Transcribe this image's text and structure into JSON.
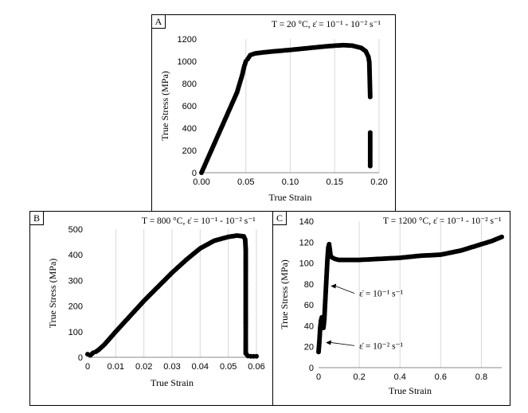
{
  "chart_data": [
    {
      "id": "A",
      "type": "scatter",
      "panel_label": "A",
      "title": "T = 20 °C, ε̇ = 10⁻¹ - 10⁻² s⁻¹",
      "xlabel": "True Strain",
      "ylabel": "True Stress (MPa)",
      "xlim": [
        0,
        0.2
      ],
      "ylim": [
        0,
        1200
      ],
      "xticks": [
        0,
        0.05,
        0.1,
        0.15,
        0.2
      ],
      "xtick_labels": [
        "0.00",
        "0.05",
        "0.10",
        "0.15",
        "0.20"
      ],
      "yticks": [
        0,
        200,
        400,
        600,
        800,
        1000,
        1200
      ],
      "ytick_labels": [
        "0",
        "200",
        "400",
        "600",
        "800",
        "1000",
        "1200"
      ],
      "grid": "vertical",
      "series": [
        {
          "points": [
            [
              0,
              0
            ],
            [
              0.005,
              90
            ],
            [
              0.01,
              180
            ],
            [
              0.015,
              270
            ],
            [
              0.02,
              360
            ],
            [
              0.025,
              450
            ],
            [
              0.03,
              540
            ],
            [
              0.035,
              630
            ],
            [
              0.04,
              720
            ],
            [
              0.043,
              800
            ],
            [
              0.046,
              880
            ],
            [
              0.048,
              950
            ],
            [
              0.05,
              1000
            ],
            [
              0.052,
              1020
            ],
            [
              0.055,
              1055
            ],
            [
              0.06,
              1070
            ],
            [
              0.07,
              1080
            ],
            [
              0.08,
              1088
            ],
            [
              0.09,
              1095
            ],
            [
              0.1,
              1102
            ],
            [
              0.11,
              1110
            ],
            [
              0.12,
              1118
            ],
            [
              0.13,
              1126
            ],
            [
              0.14,
              1134
            ],
            [
              0.15,
              1140
            ],
            [
              0.16,
              1145
            ],
            [
              0.17,
              1140
            ],
            [
              0.18,
              1120
            ],
            [
              0.185,
              1090
            ],
            [
              0.188,
              1040
            ],
            [
              0.189,
              990
            ],
            [
              0.19,
              680
            ],
            [
              0.19,
              360
            ],
            [
              0.19,
              190
            ],
            [
              0.19,
              95
            ],
            [
              0.19,
              60
            ]
          ]
        }
      ]
    },
    {
      "id": "B",
      "type": "scatter",
      "panel_label": "B",
      "title": "T = 800 °C, ε̇ = 10⁻¹ - 10⁻²  s⁻¹",
      "xlabel": "True Strain",
      "ylabel": "True Stress (MPa)",
      "xlim": [
        0,
        0.06
      ],
      "ylim": [
        0,
        500
      ],
      "xticks": [
        0,
        0.01,
        0.02,
        0.03,
        0.04,
        0.05,
        0.06
      ],
      "xtick_labels": [
        "0",
        "0.01",
        "0.02",
        "0.03",
        "0.04",
        "0.05",
        "0.06"
      ],
      "yticks": [
        0,
        100,
        200,
        300,
        400,
        500
      ],
      "ytick_labels": [
        "0",
        "100",
        "200",
        "300",
        "400",
        "500"
      ],
      "grid": "vertical",
      "series": [
        {
          "points": [
            [
              0,
              12
            ],
            [
              0.001,
              8
            ],
            [
              0.002,
              18
            ],
            [
              0.003,
              22
            ],
            [
              0.004,
              30
            ],
            [
              0.006,
              50
            ],
            [
              0.008,
              75
            ],
            [
              0.01,
              100
            ],
            [
              0.015,
              160
            ],
            [
              0.02,
              220
            ],
            [
              0.025,
              275
            ],
            [
              0.03,
              330
            ],
            [
              0.035,
              380
            ],
            [
              0.04,
              425
            ],
            [
              0.045,
              455
            ],
            [
              0.05,
              470
            ],
            [
              0.053,
              475
            ],
            [
              0.0555,
              472
            ],
            [
              0.056,
              460
            ],
            [
              0.0562,
              420
            ],
            [
              0.0562,
              380
            ],
            [
              0.0562,
              330
            ],
            [
              0.0562,
              290
            ],
            [
              0.0562,
              230
            ],
            [
              0.0562,
              180
            ],
            [
              0.0562,
              130
            ],
            [
              0.0562,
              95
            ],
            [
              0.0562,
              65
            ],
            [
              0.0562,
              40
            ],
            [
              0.0562,
              15
            ],
            [
              0.057,
              5
            ],
            [
              0.058,
              4
            ],
            [
              0.059,
              4
            ],
            [
              0.06,
              4
            ]
          ]
        }
      ]
    },
    {
      "id": "C",
      "type": "scatter",
      "panel_label": "C",
      "title": "T = 1200 °C, ε̇ = 10⁻¹ - 10⁻²  s⁻¹",
      "xlabel": "True Strain",
      "ylabel": "True Stress (MPa)",
      "xlim": [
        0,
        0.9
      ],
      "ylim": [
        0,
        140
      ],
      "xticks": [
        0,
        0.2,
        0.4,
        0.6,
        0.8
      ],
      "xtick_labels": [
        "0",
        "0.2",
        "0.4",
        "0.6",
        "0.8"
      ],
      "yticks": [
        0,
        20,
        40,
        60,
        80,
        100,
        120,
        140
      ],
      "ytick_labels": [
        "0",
        "20",
        "40",
        "60",
        "80",
        "100",
        "120",
        "140"
      ],
      "grid": "vertical",
      "series": [
        {
          "points": [
            [
              0,
              15
            ],
            [
              0.004,
              25
            ],
            [
              0.008,
              38
            ],
            [
              0.012,
              45
            ],
            [
              0.016,
              48
            ],
            [
              0.02,
              42
            ],
            [
              0.024,
              38
            ],
            [
              0.028,
              45
            ],
            [
              0.032,
              60
            ],
            [
              0.036,
              75
            ],
            [
              0.04,
              90
            ],
            [
              0.044,
              105
            ],
            [
              0.048,
              115
            ],
            [
              0.052,
              118
            ],
            [
              0.056,
              112
            ],
            [
              0.06,
              106
            ],
            [
              0.08,
              104
            ],
            [
              0.1,
              103
            ],
            [
              0.2,
              103
            ],
            [
              0.3,
              104
            ],
            [
              0.4,
              105
            ],
            [
              0.5,
              107
            ],
            [
              0.6,
              108
            ],
            [
              0.7,
              112
            ],
            [
              0.8,
              118
            ],
            [
              0.85,
              121
            ],
            [
              0.9,
              125
            ]
          ]
        }
      ],
      "annotations": [
        {
          "text": "ε̇ = 10⁻¹ s⁻¹",
          "arrow_to": [
            0.04,
            78
          ],
          "text_at": [
            0.2,
            68
          ]
        },
        {
          "text": "ε̇ = 10⁻² s⁻¹",
          "arrow_to": [
            0.016,
            24
          ],
          "text_at": [
            0.2,
            18
          ]
        }
      ]
    }
  ]
}
